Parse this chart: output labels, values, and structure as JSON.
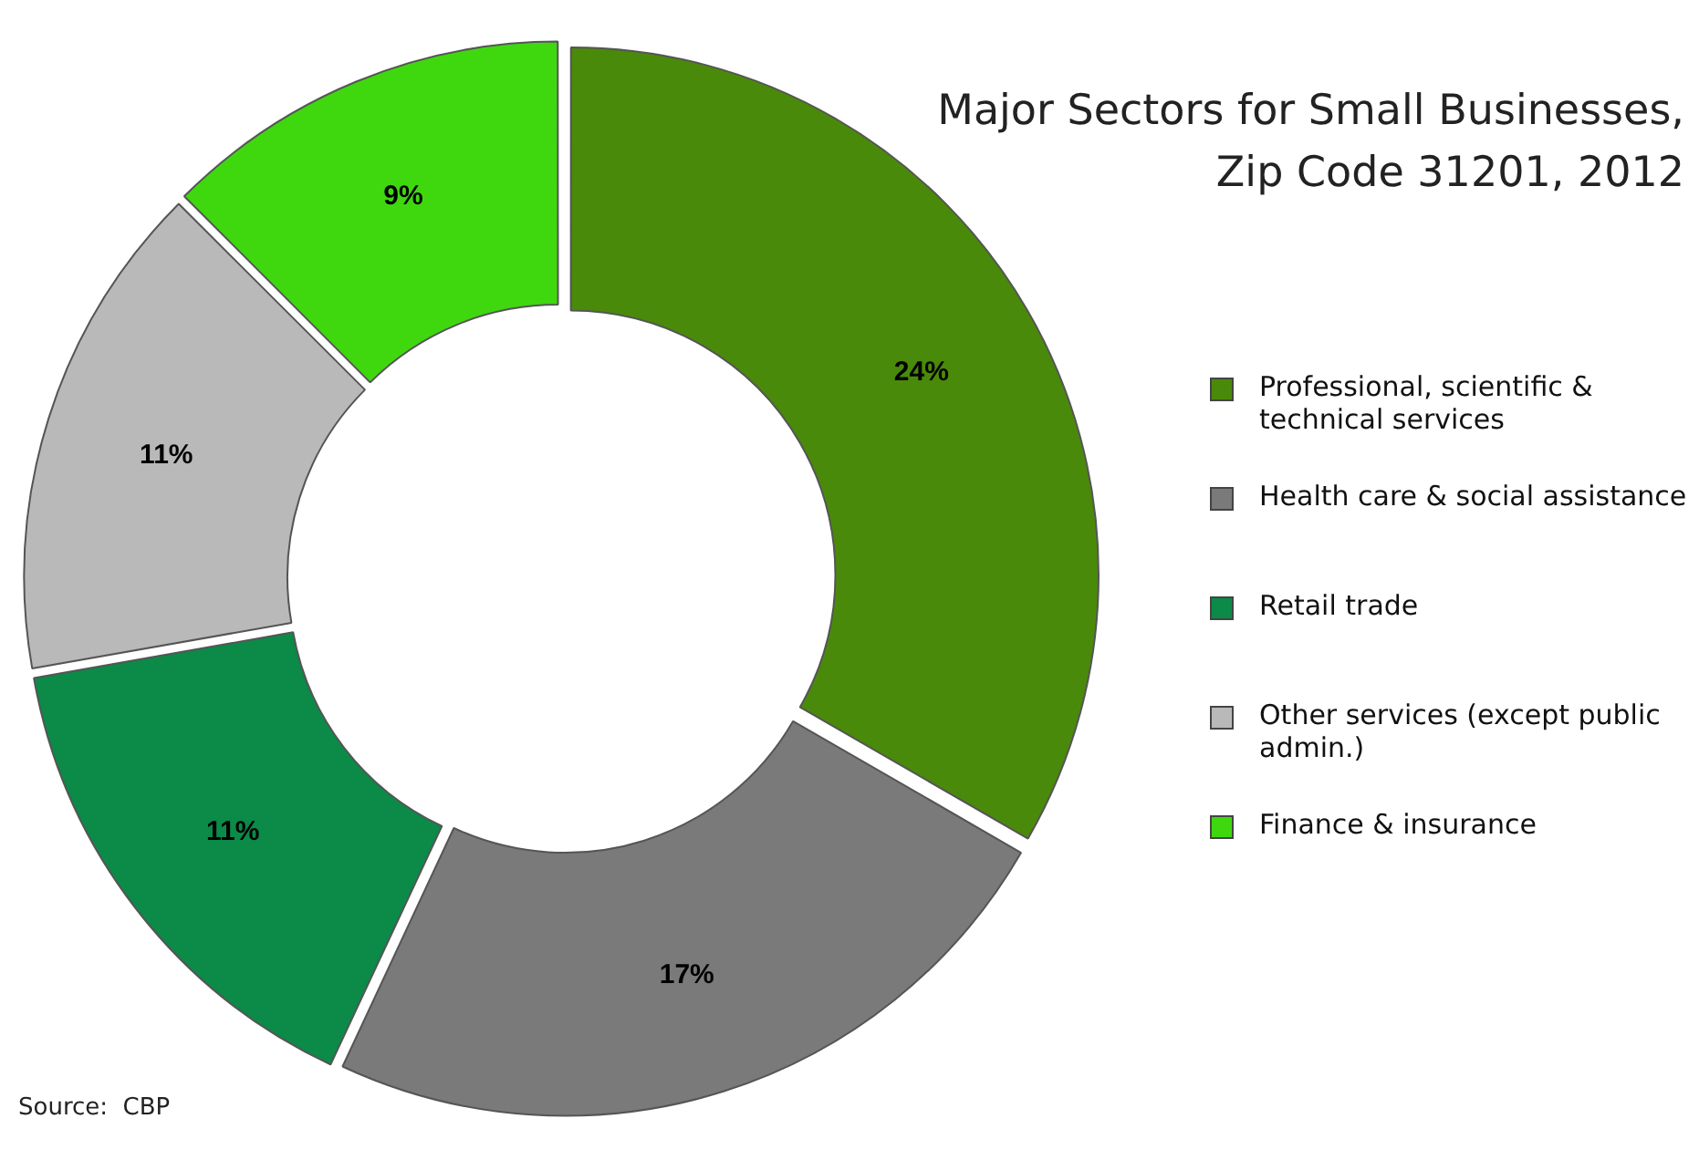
{
  "chart_data": {
    "type": "donut",
    "title": "Major Sectors for Small Businesses,\nZip Code 31201, 2012",
    "categories": [
      "Professional, scientific & technical services",
      "Health care & social assistance",
      "Retail trade",
      "Other services (except public admin.)",
      "Finance & insurance"
    ],
    "values": [
      24,
      17,
      11,
      11,
      9
    ],
    "colors": [
      "#4a8a0a",
      "#7a7a7a",
      "#0b8a48",
      "#b9b9b9",
      "#3fd80f"
    ],
    "value_labels": [
      "24%",
      "17%",
      "11%",
      "11%",
      "9%"
    ],
    "legend": "right",
    "annotations": [
      "Source:  CBP"
    ]
  }
}
